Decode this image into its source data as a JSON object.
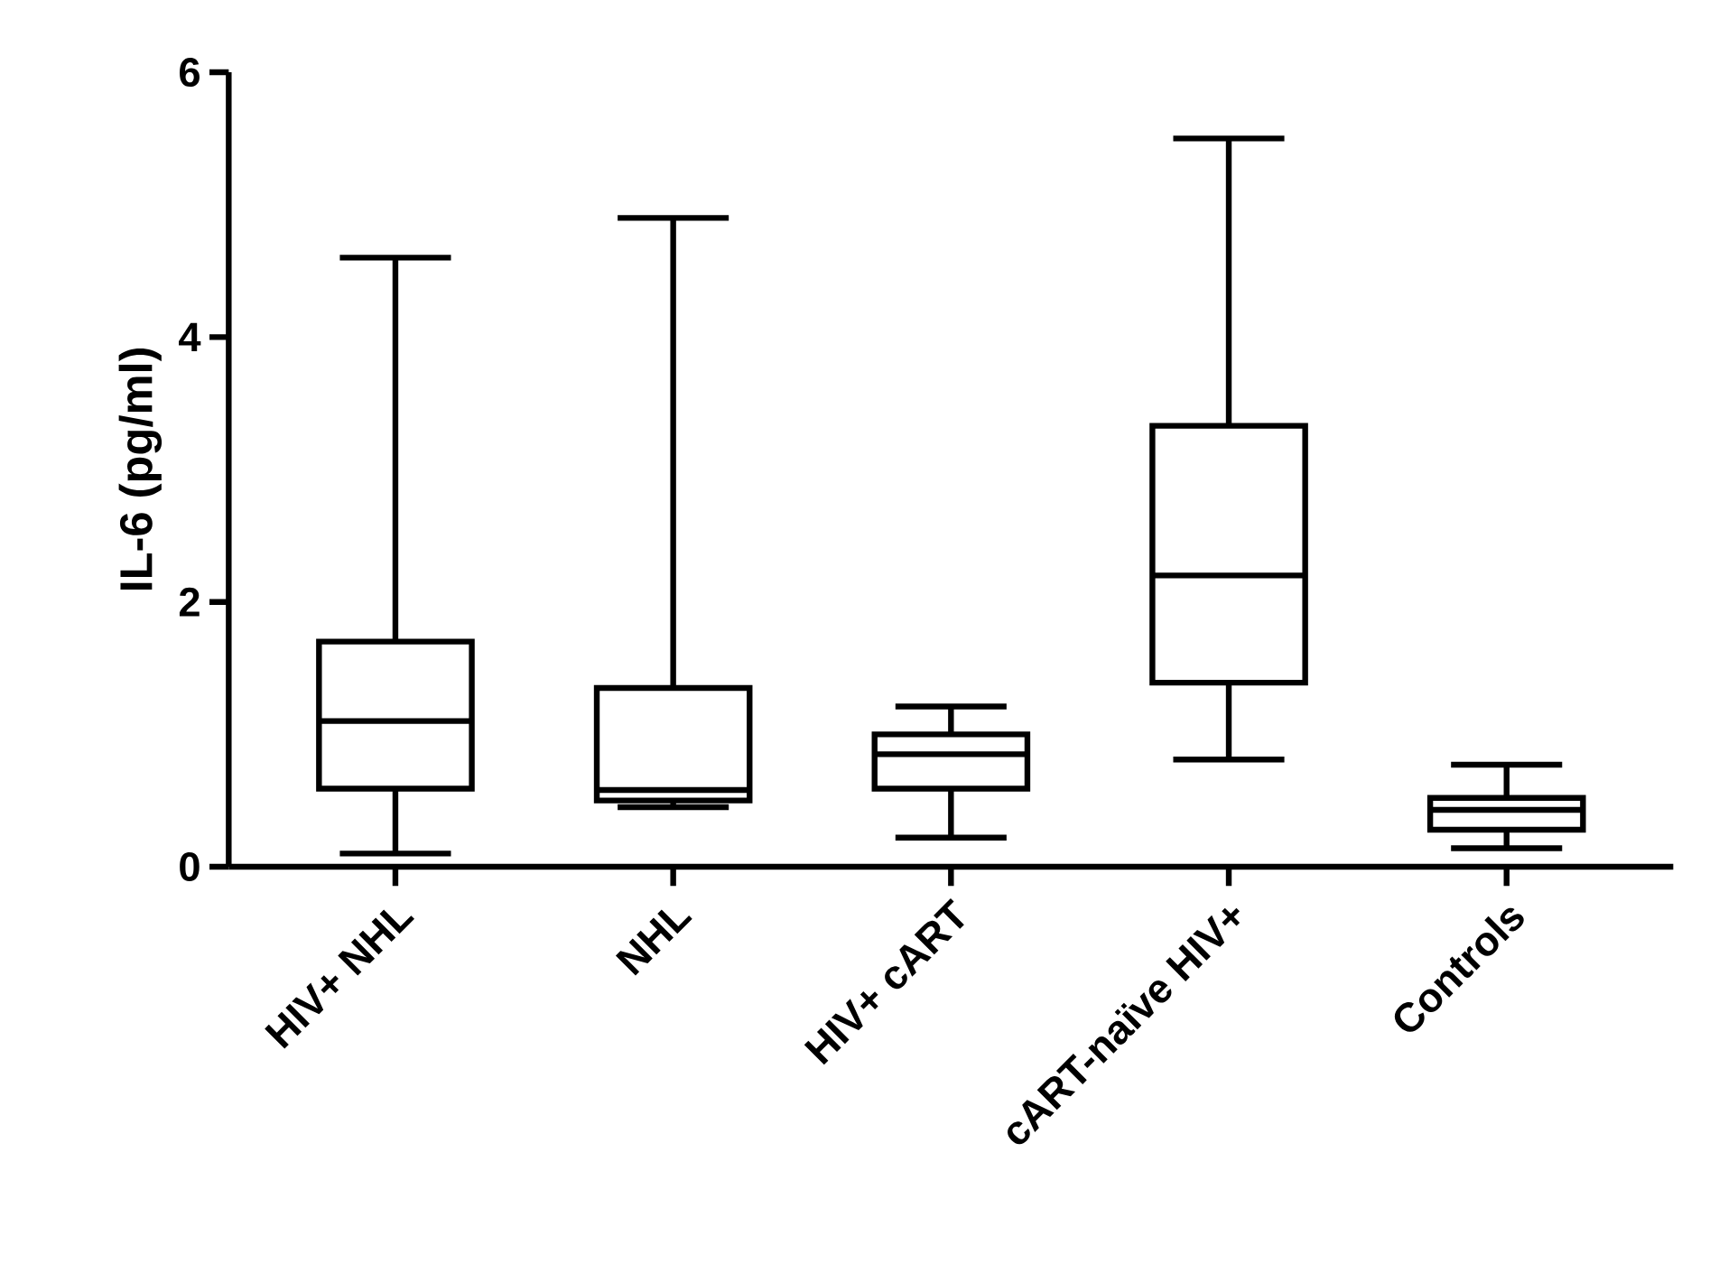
{
  "chart_data": {
    "type": "box",
    "ylabel": "IL-6 (pg/ml)",
    "categories": [
      "HIV+ NHL",
      "NHL",
      "HIV+ cART",
      "cART-naïve HIV+",
      "Controls"
    ],
    "boxes": [
      {
        "low": 0.1,
        "q1": 0.59,
        "median": 1.1,
        "q3": 1.7,
        "high": 4.6
      },
      {
        "low": 0.45,
        "q1": 0.5,
        "median": 0.58,
        "q3": 1.35,
        "high": 4.9
      },
      {
        "low": 0.22,
        "q1": 0.59,
        "median": 0.85,
        "q3": 1.0,
        "high": 1.21
      },
      {
        "low": 0.81,
        "q1": 1.39,
        "median": 2.2,
        "q3": 3.33,
        "high": 5.5
      },
      {
        "low": 0.14,
        "q1": 0.28,
        "median": 0.43,
        "q3": 0.52,
        "high": 0.77
      }
    ],
    "ylim": [
      0,
      6
    ],
    "yticks": [
      0,
      2,
      4,
      6
    ]
  }
}
